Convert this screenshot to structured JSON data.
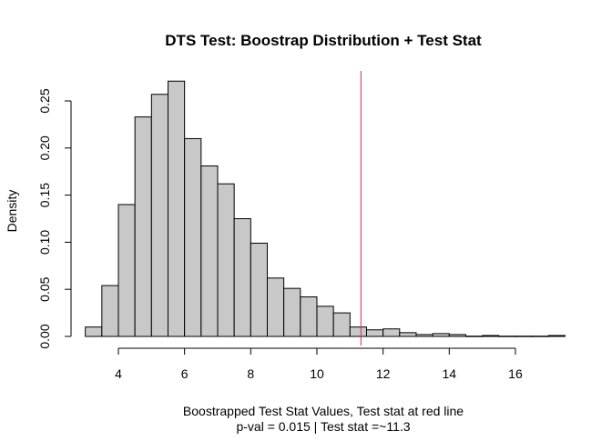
{
  "chart_data": {
    "type": "bar",
    "subtype": "histogram",
    "title": "DTS Test: Boostrap Distribution + Test Stat",
    "xlabel": "Boostrapped Test Stat Values, Test stat at red line",
    "subtitle": "p-val = 0.015 | Test stat =~11.3",
    "ylabel": "Density",
    "bin_width": 0.5,
    "bin_start": 3,
    "values": [
      0.01,
      0.054,
      0.14,
      0.233,
      0.257,
      0.271,
      0.21,
      0.181,
      0.162,
      0.125,
      0.099,
      0.062,
      0.051,
      0.042,
      0.032,
      0.025,
      0.01,
      0.007,
      0.008,
      0.004,
      0.002,
      0.003,
      0.002,
      0.0003,
      0.001,
      0.0003,
      0.0003,
      0.0003,
      0.001
    ],
    "xticks": [
      4,
      6,
      8,
      10,
      12,
      14,
      16
    ],
    "yticks": [
      "0.00",
      "0.05",
      "0.10",
      "0.15",
      "0.20",
      "0.25"
    ],
    "xlim": [
      3,
      17.5
    ],
    "ylim": [
      0,
      0.27
    ],
    "test_stat": 11.33,
    "bar_color": "#C8C8C8",
    "line_color": "#E0245E",
    "grid": false
  }
}
